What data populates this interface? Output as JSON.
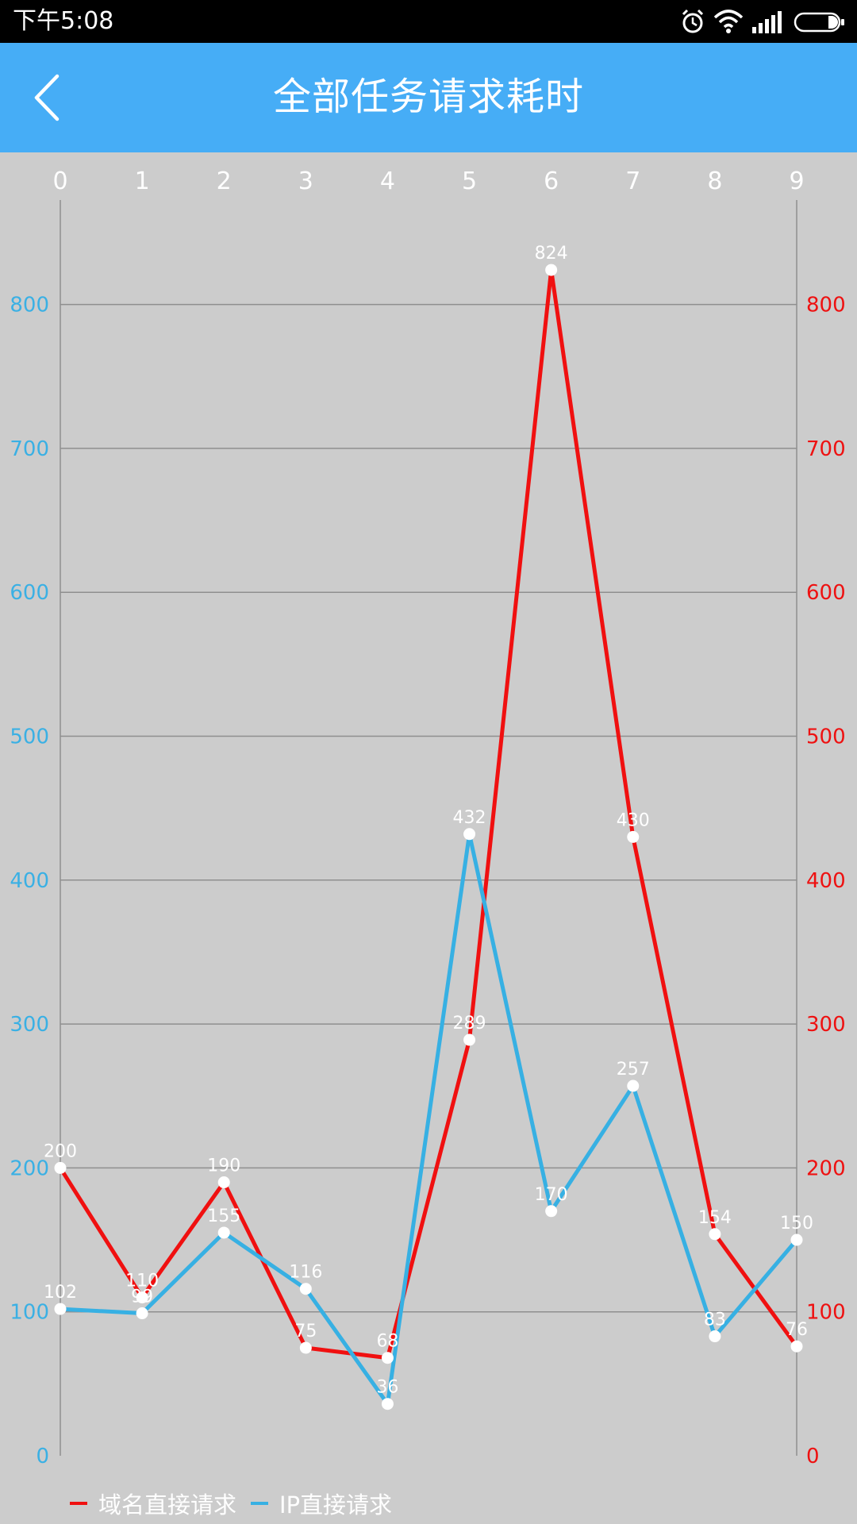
{
  "status_bar": {
    "time": "下午5:08",
    "icons": [
      "alarm-icon",
      "wifi-icon",
      "signal-icon",
      "battery-icon"
    ]
  },
  "app_bar": {
    "back_icon": "chevron-left-icon",
    "title": "全部任务请求耗时",
    "background": "#46adf6"
  },
  "chart_data": {
    "type": "line",
    "title": "",
    "xlabel": "",
    "ylabel": "",
    "x": [
      0,
      1,
      2,
      3,
      4,
      5,
      6,
      7,
      8,
      9
    ],
    "x_tick_labels": [
      "0",
      "1",
      "2",
      "3",
      "4",
      "5",
      "6",
      "7",
      "8",
      "9"
    ],
    "x_axis_position": "top",
    "y_left": {
      "ylim": [
        0,
        875
      ],
      "ticks": [
        0,
        100,
        200,
        300,
        400,
        500,
        600,
        700,
        800
      ],
      "color": "#3ab0e4"
    },
    "y_right": {
      "ylim": [
        0,
        875
      ],
      "ticks": [
        0,
        100,
        200,
        300,
        400,
        500,
        600,
        700,
        800
      ],
      "color": "#ee1111"
    },
    "grid": true,
    "legend_position": "bottom-left",
    "series": [
      {
        "name": "域名直接请求",
        "color": "#f01010",
        "axis": "right",
        "values": [
          200,
          110,
          190,
          75,
          68,
          289,
          824,
          430,
          154,
          76
        ]
      },
      {
        "name": "IP直接请求",
        "color": "#37b0e3",
        "axis": "left",
        "values": [
          102,
          99,
          155,
          116,
          36,
          432,
          170,
          257,
          83,
          150
        ]
      }
    ]
  }
}
